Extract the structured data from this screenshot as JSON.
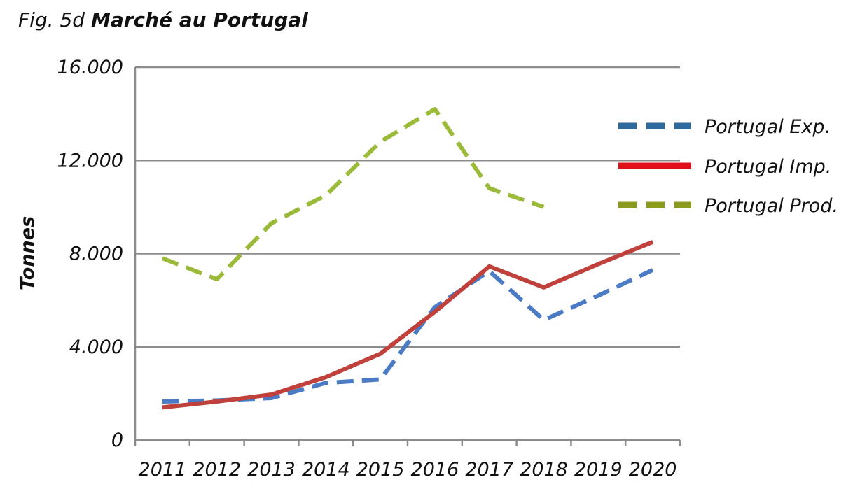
{
  "chart_data": {
    "type": "line",
    "title_prefix": "Fig. 5d",
    "title": "Marché au Portugal",
    "xlabel": "",
    "ylabel": "Tonnes",
    "x": [
      "2011",
      "2012",
      "2013",
      "2014",
      "2015",
      "2016",
      "2017",
      "2018",
      "2019",
      "2020"
    ],
    "yticks": [
      0,
      4000,
      8000,
      12000,
      16000
    ],
    "ytick_labels": [
      "0",
      "4.000",
      "8.000",
      "12.000",
      "16.000"
    ],
    "ylim": [
      0,
      16000
    ],
    "grid": true,
    "legend_position": "right",
    "series": [
      {
        "name": "Portugal Exp.",
        "color": "#4a7bc4",
        "legend_color": "#2e6a9e",
        "dash": "dashed",
        "values": [
          1650,
          1700,
          1800,
          2450,
          2600,
          5700,
          7250,
          5150,
          6200,
          7300
        ]
      },
      {
        "name": "Portugal  Imp.",
        "color": "#c0413b",
        "legend_color": "#e0101a",
        "dash": "solid",
        "values": [
          1400,
          1650,
          1950,
          2700,
          3700,
          5500,
          7450,
          6550,
          7550,
          8500
        ]
      },
      {
        "name": "Portugal Prod.",
        "color": "#9bba3a",
        "legend_color": "#8c9a1e",
        "dash": "dashed",
        "values": [
          7800,
          6900,
          9300,
          10500,
          12800,
          14200,
          10800,
          10000,
          null,
          null
        ]
      }
    ]
  }
}
